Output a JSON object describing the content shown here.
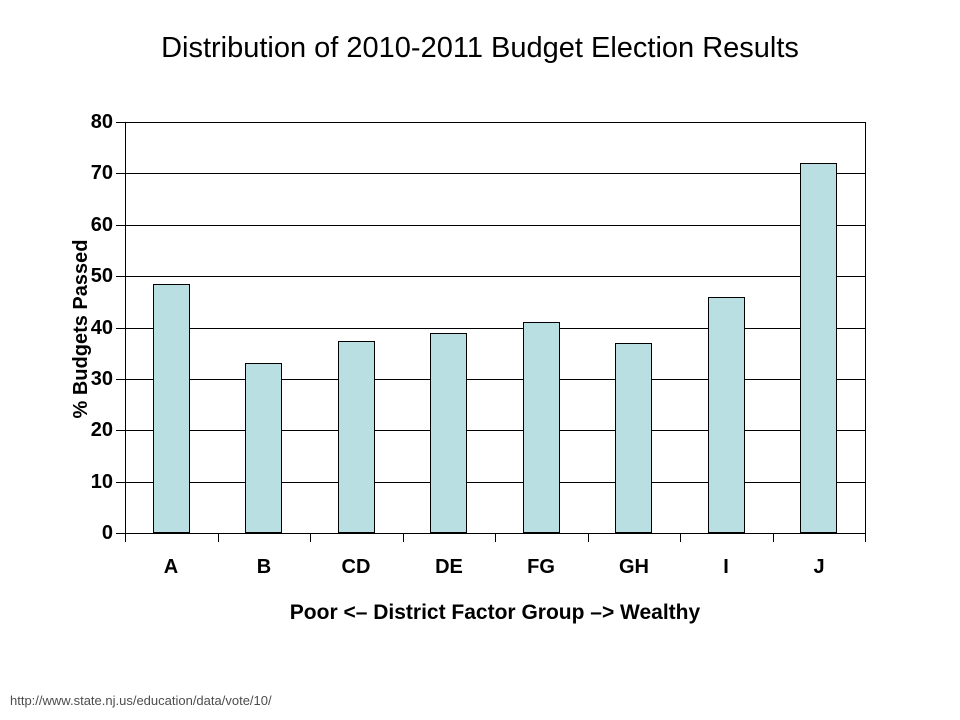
{
  "title": "Distribution of 2010-2011 Budget Election Results",
  "source_url": "http://www.state.nj.us/education/data/vote/10/",
  "chart_data": {
    "type": "bar",
    "title": "Distribution of 2010-2011 Budget Election Results",
    "categories": [
      "A",
      "B",
      "CD",
      "DE",
      "FG",
      "GH",
      "I",
      "J"
    ],
    "values": [
      48.5,
      33,
      37.3,
      39,
      41,
      37,
      46,
      72
    ],
    "xlabel": "Poor <– District Factor Group –> Wealthy",
    "ylabel": "% Budgets Passed",
    "ylim": [
      0,
      80
    ],
    "ytick_step": 10,
    "ytick_labels": [
      "0",
      "10",
      "20",
      "30",
      "40",
      "50",
      "60",
      "70",
      "80"
    ],
    "grid": "horizontal",
    "legend": "none",
    "bar_color": "#b9dfe3",
    "bar_border_color": "#000000",
    "axis_color": "#000000"
  }
}
